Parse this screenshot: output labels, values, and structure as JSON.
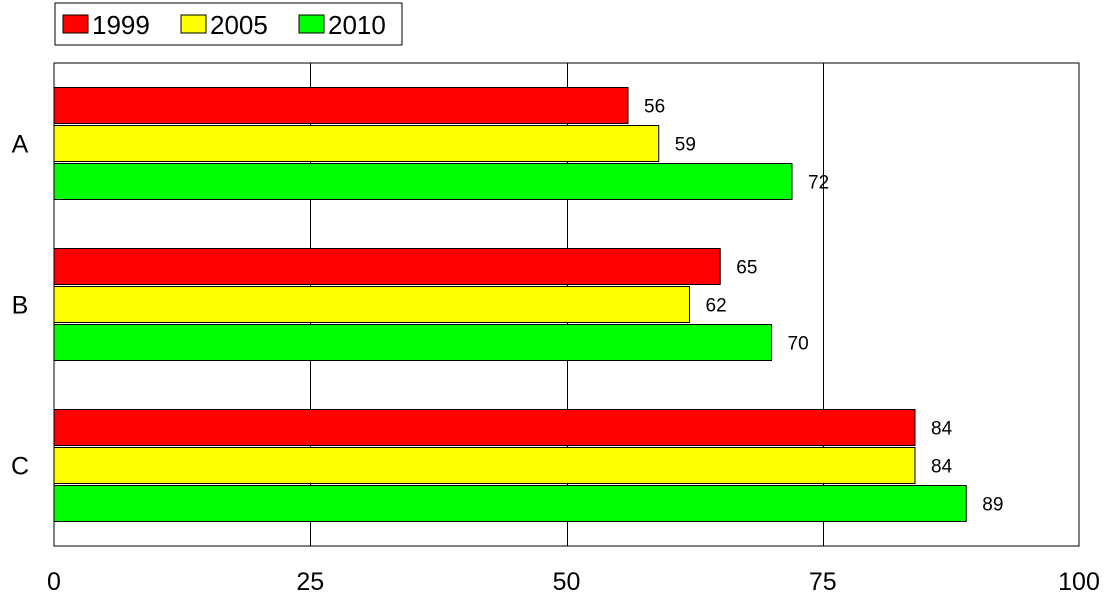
{
  "chart_data": {
    "type": "bar",
    "orientation": "horizontal",
    "categories": [
      "A",
      "B",
      "C"
    ],
    "series": [
      {
        "name": "1999",
        "color": "#ff0000",
        "values": [
          56,
          65,
          84
        ]
      },
      {
        "name": "2005",
        "color": "#ffff00",
        "values": [
          59,
          62,
          84
        ]
      },
      {
        "name": "2010",
        "color": "#00ff00",
        "values": [
          72,
          70,
          89
        ]
      }
    ],
    "xlim": [
      0,
      100
    ],
    "x_ticks": [
      "0",
      "25",
      "50",
      "75",
      "100"
    ],
    "grid": "vertical",
    "legend_position": "top-left",
    "data_labels": true
  }
}
